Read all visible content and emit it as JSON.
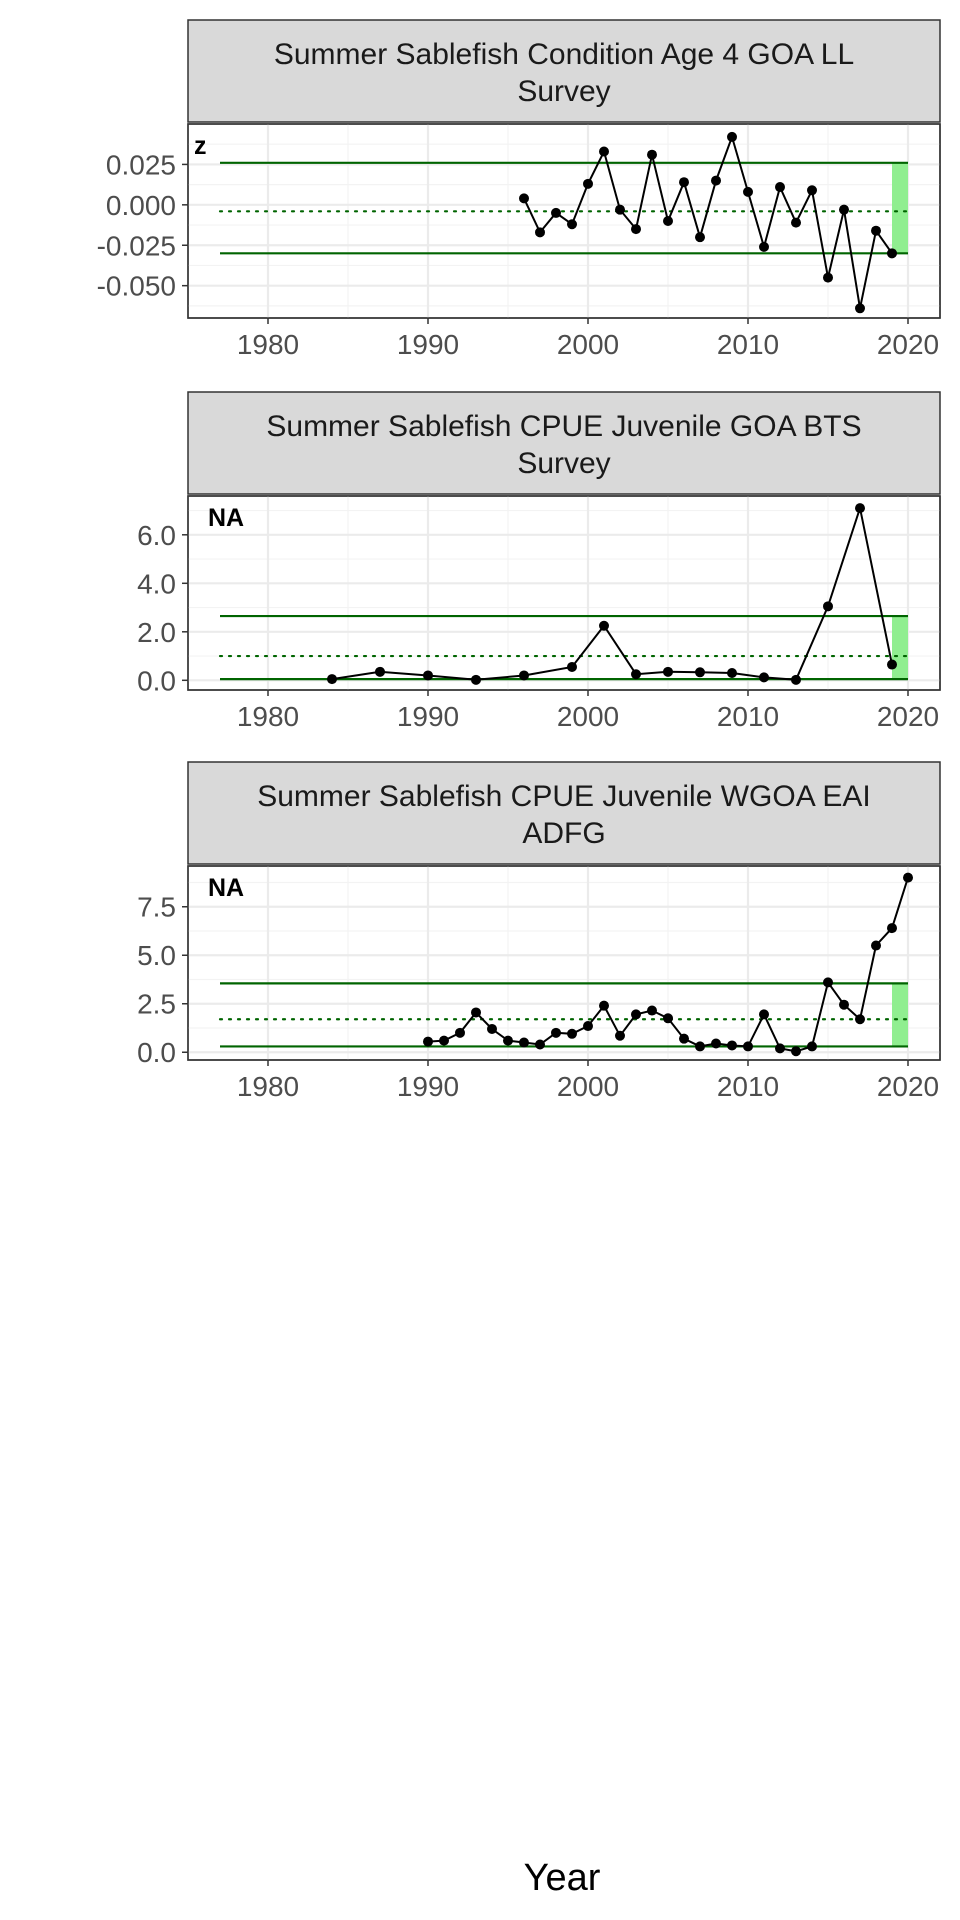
{
  "colors": {
    "threshold_line": "#006400",
    "recent_band": "#90ee90",
    "series": "#000000",
    "strip_fill": "#d9d9d9"
  },
  "x_axis_title": "Year",
  "chart_data": [
    {
      "type": "line",
      "title": "Summer Sablefish Condition Age 4 GOA LL Survey",
      "title_lines": [
        "Summer Sablefish Condition Age 4 GOA LL",
        "Survey"
      ],
      "corner_label": "z",
      "xlim": [
        1975,
        2022
      ],
      "ylim": [
        -0.07,
        0.05
      ],
      "x_ticks": [
        1980,
        1990,
        2000,
        2010,
        2020
      ],
      "x_tick_labels": [
        "1980",
        "1990",
        "2000",
        "2010",
        "2020"
      ],
      "y_ticks": [
        0.025,
        0.0,
        -0.025,
        -0.05
      ],
      "y_tick_labels": [
        "0.025",
        "0.000",
        "-0.025",
        "-0.050"
      ],
      "upper_line": 0.026,
      "mean_line": -0.004,
      "lower_line": -0.03,
      "reference_start": 1977,
      "reference_end": 2020,
      "recent_band": [
        2019,
        2020
      ],
      "x": [
        1996,
        1997,
        1998,
        1999,
        2000,
        2001,
        2002,
        2003,
        2004,
        2005,
        2006,
        2007,
        2008,
        2009,
        2010,
        2011,
        2012,
        2013,
        2014,
        2015,
        2016,
        2017,
        2018,
        2019
      ],
      "y": [
        0.004,
        -0.017,
        -0.005,
        -0.012,
        0.013,
        0.033,
        -0.003,
        -0.015,
        0.031,
        -0.01,
        0.014,
        -0.02,
        0.015,
        0.042,
        0.008,
        -0.026,
        0.011,
        -0.011,
        0.009,
        -0.045,
        -0.003,
        -0.064,
        -0.016,
        -0.03
      ]
    },
    {
      "type": "line",
      "title": "Summer Sablefish CPUE Juvenile GOA BTS Survey",
      "title_lines": [
        "Summer Sablefish CPUE Juvenile GOA BTS",
        "Survey"
      ],
      "corner_label": "NA",
      "xlim": [
        1975,
        2022
      ],
      "ylim": [
        -0.4,
        7.6
      ],
      "x_ticks": [
        1980,
        1990,
        2000,
        2010,
        2020
      ],
      "x_tick_labels": [
        "1980",
        "1990",
        "2000",
        "2010",
        "2020"
      ],
      "y_ticks": [
        6.0,
        4.0,
        2.0,
        0.0
      ],
      "y_tick_labels": [
        "6.0",
        "4.0",
        "2.0",
        "0.0"
      ],
      "upper_line": 2.65,
      "mean_line": 1.0,
      "lower_line": 0.05,
      "reference_start": 1977,
      "reference_end": 2020,
      "recent_band": [
        2019,
        2020
      ],
      "x": [
        1984,
        1987,
        1990,
        1993,
        1996,
        1999,
        2001,
        2003,
        2005,
        2007,
        2009,
        2011,
        2013,
        2015,
        2017,
        2019
      ],
      "y": [
        0.05,
        0.35,
        0.2,
        0.02,
        0.2,
        0.55,
        2.25,
        0.25,
        0.35,
        0.33,
        0.3,
        0.12,
        0.02,
        3.05,
        7.1,
        0.65
      ]
    },
    {
      "type": "line",
      "title": "Summer Sablefish CPUE Juvenile WGOA EAI ADFG",
      "title_lines": [
        "Summer Sablefish CPUE Juvenile WGOA EAI",
        "ADFG"
      ],
      "corner_label": "NA",
      "xlim": [
        1975,
        2022
      ],
      "ylim": [
        -0.4,
        9.6
      ],
      "x_ticks": [
        1980,
        1990,
        2000,
        2010,
        2020
      ],
      "x_tick_labels": [
        "1980",
        "1990",
        "2000",
        "2010",
        "2020"
      ],
      "y_ticks": [
        7.5,
        5.0,
        2.5,
        0.0
      ],
      "y_tick_labels": [
        "7.5",
        "5.0",
        "2.5",
        "0.0"
      ],
      "upper_line": 3.55,
      "mean_line": 1.7,
      "lower_line": 0.3,
      "reference_start": 1977,
      "reference_end": 2020,
      "recent_band": [
        2019,
        2020
      ],
      "x": [
        1990,
        1991,
        1992,
        1993,
        1994,
        1995,
        1996,
        1997,
        1998,
        1999,
        2000,
        2001,
        2002,
        2003,
        2004,
        2005,
        2006,
        2007,
        2008,
        2009,
        2010,
        2011,
        2012,
        2013,
        2014,
        2015,
        2016,
        2017,
        2018,
        2019,
        2020
      ],
      "y": [
        0.55,
        0.6,
        1.0,
        2.05,
        1.2,
        0.6,
        0.5,
        0.4,
        1.0,
        0.95,
        1.35,
        2.4,
        0.85,
        1.95,
        2.15,
        1.75,
        0.7,
        0.3,
        0.45,
        0.35,
        0.3,
        1.95,
        0.2,
        0.05,
        0.3,
        3.6,
        2.45,
        1.7,
        5.5,
        6.4,
        9.0
      ]
    }
  ]
}
